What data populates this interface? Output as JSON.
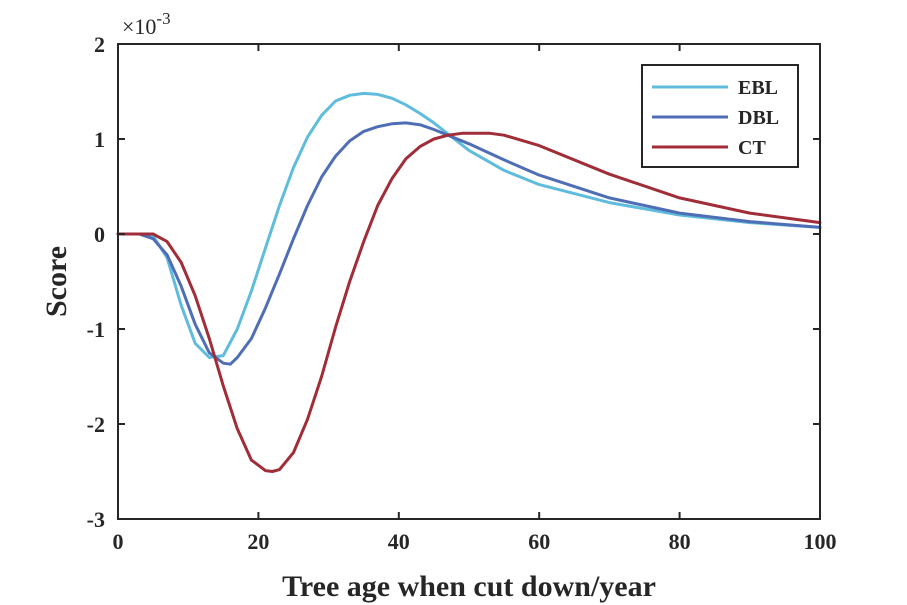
{
  "chart_data": {
    "type": "line",
    "title": "",
    "xlabel": "Tree age when cut down/year",
    "ylabel": "Score",
    "exponent": {
      "base": "×10",
      "power": "-3"
    },
    "xlim": [
      0,
      100
    ],
    "ylim": [
      -3,
      2
    ],
    "xticks": [
      0,
      20,
      40,
      60,
      80,
      100
    ],
    "yticks": [
      -3,
      -2,
      -1,
      0,
      1,
      2
    ],
    "grid": false,
    "legend_position": "top-right",
    "y_values_scaled_by": 0.001,
    "series": [
      {
        "name": "EBL",
        "color": "#5fbcdc",
        "x": [
          0,
          3,
          5,
          7,
          9,
          11,
          13,
          15,
          17,
          19,
          21,
          23,
          25,
          27,
          29,
          31,
          33,
          35,
          37,
          39,
          41,
          43,
          45,
          50,
          55,
          60,
          70,
          80,
          90,
          100
        ],
        "y": [
          0,
          0,
          -0.02,
          -0.25,
          -0.75,
          -1.15,
          -1.3,
          -1.28,
          -1.0,
          -0.6,
          -0.15,
          0.3,
          0.7,
          1.02,
          1.25,
          1.4,
          1.46,
          1.48,
          1.47,
          1.43,
          1.36,
          1.27,
          1.17,
          0.88,
          0.67,
          0.52,
          0.33,
          0.2,
          0.12,
          0.07
        ]
      },
      {
        "name": "DBL",
        "color": "#4f6eb5",
        "x": [
          0,
          3,
          5,
          7,
          9,
          11,
          13,
          15,
          16,
          17,
          19,
          21,
          23,
          25,
          27,
          29,
          31,
          33,
          35,
          37,
          39,
          41,
          43,
          45,
          50,
          55,
          60,
          70,
          80,
          90,
          100
        ],
        "y": [
          0,
          0,
          -0.05,
          -0.22,
          -0.55,
          -0.95,
          -1.25,
          -1.36,
          -1.37,
          -1.3,
          -1.1,
          -0.78,
          -0.42,
          -0.05,
          0.3,
          0.6,
          0.82,
          0.98,
          1.08,
          1.13,
          1.16,
          1.17,
          1.15,
          1.1,
          0.95,
          0.78,
          0.62,
          0.38,
          0.22,
          0.13,
          0.07
        ]
      },
      {
        "name": "CT",
        "color": "#a02d37",
        "x": [
          0,
          3,
          5,
          7,
          9,
          11,
          13,
          15,
          17,
          19,
          21,
          22,
          23,
          25,
          27,
          29,
          31,
          33,
          35,
          37,
          39,
          41,
          43,
          45,
          47,
          49,
          51,
          53,
          55,
          60,
          70,
          80,
          90,
          100
        ],
        "y": [
          0,
          0,
          0,
          -0.08,
          -0.3,
          -0.65,
          -1.1,
          -1.6,
          -2.05,
          -2.38,
          -2.49,
          -2.5,
          -2.48,
          -2.3,
          -1.95,
          -1.5,
          -0.98,
          -0.5,
          -0.08,
          0.3,
          0.58,
          0.79,
          0.92,
          1.0,
          1.04,
          1.06,
          1.06,
          1.06,
          1.04,
          0.93,
          0.63,
          0.38,
          0.22,
          0.12
        ]
      }
    ]
  }
}
